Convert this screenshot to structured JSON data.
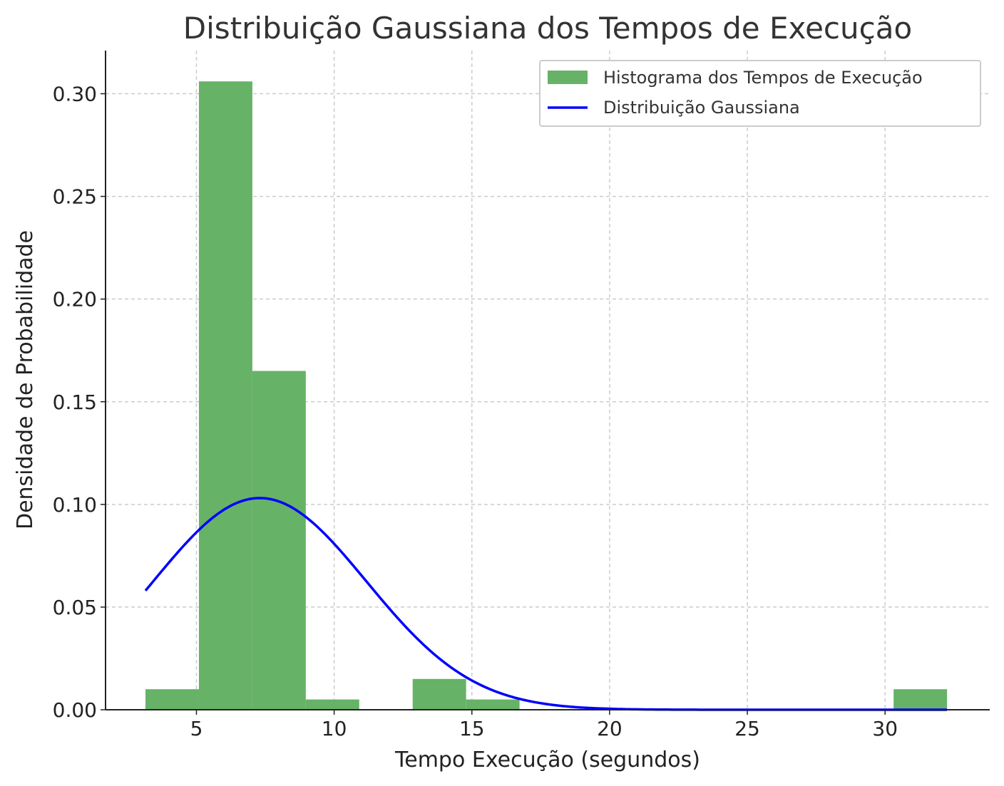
{
  "chart_data": {
    "type": "bar",
    "title": "Distribuição Gaussiana dos Tempos de Execução",
    "xlabel": "Tempo Execução (segundos)",
    "ylabel": "Densidade de Probabilidade",
    "xlim": [
      1.7,
      33.8
    ],
    "ylim": [
      0,
      0.321
    ],
    "xticks": [
      5,
      10,
      15,
      20,
      25,
      30
    ],
    "yticks": [
      0.0,
      0.05,
      0.1,
      0.15,
      0.2,
      0.25,
      0.3
    ],
    "ytick_labels": [
      "0.00",
      "0.05",
      "0.10",
      "0.15",
      "0.20",
      "0.25",
      "0.30"
    ],
    "grid": true,
    "legend_position": "top-right",
    "series": [
      {
        "name": "Histograma dos Tempos de Execução",
        "kind": "histogram",
        "color": "#66b266",
        "bins": [
          {
            "x0": 3.15,
            "x1": 5.09,
            "density": 0.01
          },
          {
            "x0": 5.09,
            "x1": 7.03,
            "density": 0.306
          },
          {
            "x0": 7.03,
            "x1": 8.97,
            "density": 0.165
          },
          {
            "x0": 8.97,
            "x1": 10.91,
            "density": 0.005
          },
          {
            "x0": 10.91,
            "x1": 12.85,
            "density": 0
          },
          {
            "x0": 12.85,
            "x1": 14.79,
            "density": 0.015
          },
          {
            "x0": 14.79,
            "x1": 16.73,
            "density": 0.005
          },
          {
            "x0": 16.73,
            "x1": 18.67,
            "density": 0
          },
          {
            "x0": 18.67,
            "x1": 20.61,
            "density": 0
          },
          {
            "x0": 20.61,
            "x1": 22.55,
            "density": 0
          },
          {
            "x0": 22.55,
            "x1": 24.49,
            "density": 0
          },
          {
            "x0": 24.49,
            "x1": 26.43,
            "density": 0
          },
          {
            "x0": 26.43,
            "x1": 28.37,
            "density": 0
          },
          {
            "x0": 28.37,
            "x1": 30.31,
            "density": 0
          },
          {
            "x0": 30.31,
            "x1": 32.25,
            "density": 0.01
          }
        ]
      },
      {
        "name": "Distribuição Gaussiana",
        "kind": "line",
        "color": "#0000ff",
        "mean": 7.3,
        "std": 3.87,
        "x_range": [
          3.15,
          32.25
        ]
      }
    ]
  }
}
